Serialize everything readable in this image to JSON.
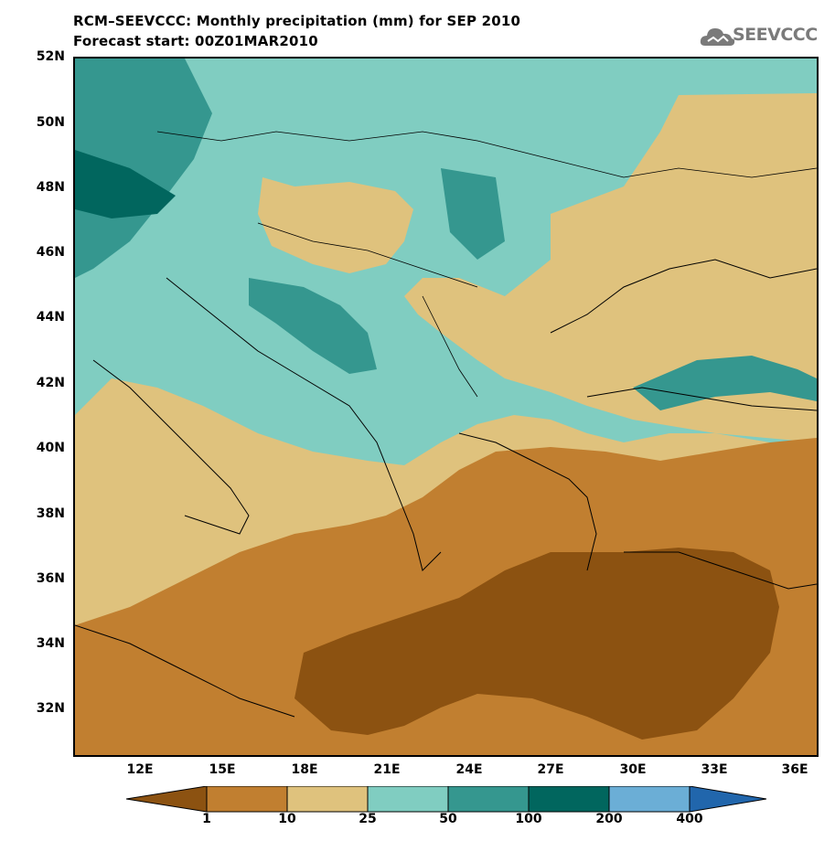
{
  "title_line1": "RCM–SEEVCCC: Monthly precipitation (mm) for SEP 2010",
  "title_line2": "Forecast start: 00Z01MAR2010",
  "logo": {
    "text": "SEEVCCC",
    "icon": "cloud-icon"
  },
  "lat_labels": [
    "52N",
    "50N",
    "48N",
    "46N",
    "44N",
    "42N",
    "40N",
    "38N",
    "36N",
    "34N",
    "32N"
  ],
  "lon_labels": [
    "12E",
    "15E",
    "18E",
    "21E",
    "24E",
    "27E",
    "30E",
    "33E",
    "36E"
  ],
  "colorbar": {
    "labels": [
      "1",
      "10",
      "25",
      "50",
      "100",
      "200",
      "400"
    ],
    "colors": [
      "#8c5211",
      "#c17f30",
      "#dfc27d",
      "#80cdc1",
      "#35978f",
      "#01665e",
      "#6baed6",
      "#2166ac"
    ]
  }
}
